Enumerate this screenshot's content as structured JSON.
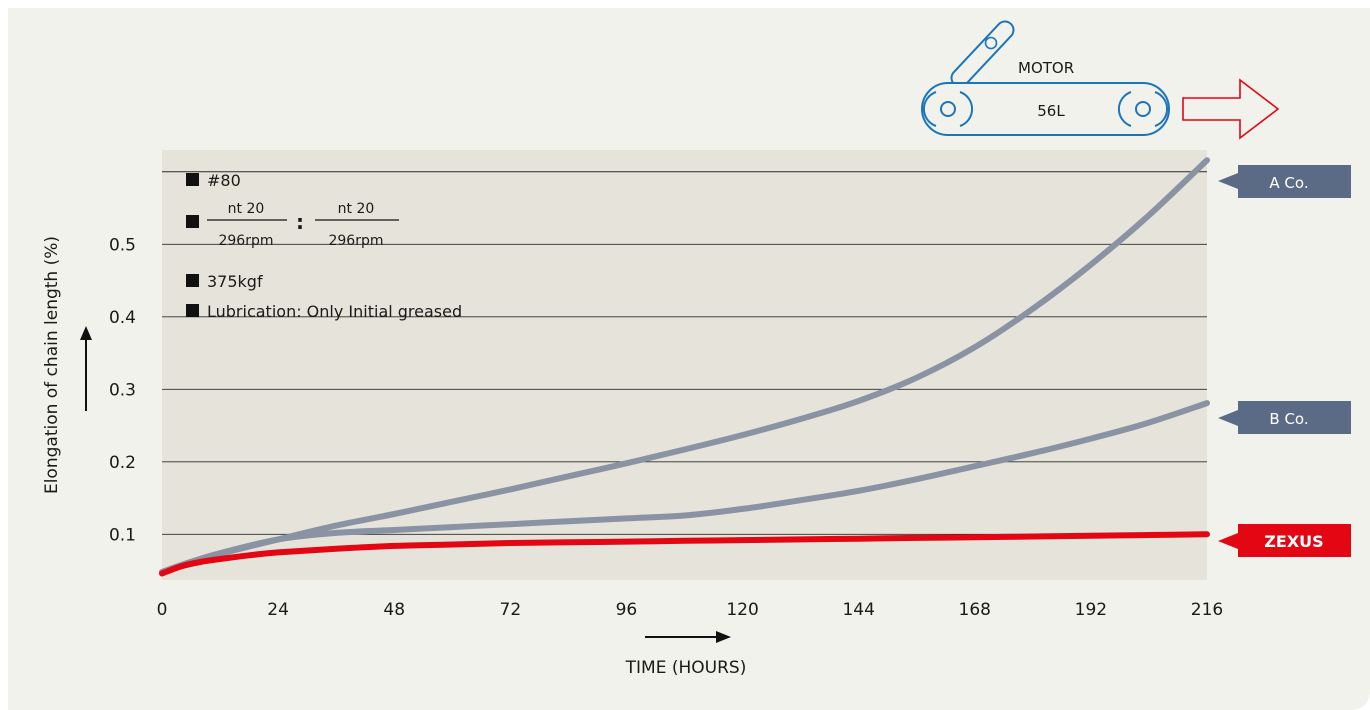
{
  "chart_data": {
    "type": "line",
    "ylabel": "Elongation of chain length (%)",
    "xlabel": "TIME (HOURS)",
    "x_ticks": [
      0,
      24,
      48,
      72,
      96,
      120,
      144,
      168,
      192,
      216
    ],
    "y_ticks": [
      0.1,
      0.2,
      0.3,
      0.4,
      0.5
    ],
    "xlim": [
      0,
      216
    ],
    "ylim": [
      0.037,
      0.63
    ],
    "grid": true,
    "series": [
      {
        "name": "A Co.",
        "color": "#8993a3",
        "x": [
          0,
          6,
          12,
          24,
          36,
          48,
          60,
          72,
          84,
          96,
          108,
          120,
          132,
          144,
          156,
          168,
          180,
          192,
          204,
          216
        ],
        "y": [
          0.048,
          0.062,
          0.073,
          0.093,
          0.112,
          0.128,
          0.145,
          0.162,
          0.18,
          0.198,
          0.217,
          0.237,
          0.259,
          0.284,
          0.316,
          0.358,
          0.411,
          0.472,
          0.54,
          0.616
        ]
      },
      {
        "name": "B Co.",
        "color": "#8993a3",
        "x": [
          0,
          6,
          12,
          24,
          36,
          48,
          60,
          72,
          84,
          96,
          108,
          120,
          132,
          144,
          156,
          168,
          180,
          192,
          204,
          216
        ],
        "y": [
          0.048,
          0.062,
          0.074,
          0.093,
          0.102,
          0.106,
          0.11,
          0.114,
          0.118,
          0.122,
          0.126,
          0.135,
          0.147,
          0.16,
          0.176,
          0.194,
          0.212,
          0.232,
          0.254,
          0.281
        ]
      },
      {
        "name": "ZEXUS",
        "color": "#e30613",
        "x": [
          0,
          4,
          8,
          12,
          18,
          24,
          36,
          48,
          60,
          72,
          84,
          96,
          108,
          120,
          132,
          144,
          156,
          168,
          180,
          192,
          204,
          216
        ],
        "y": [
          0.046,
          0.056,
          0.062,
          0.066,
          0.071,
          0.075,
          0.08,
          0.084,
          0.086,
          0.088,
          0.089,
          0.09,
          0.091,
          0.092,
          0.093,
          0.094,
          0.095,
          0.096,
          0.097,
          0.098,
          0.099,
          0.1
        ]
      }
    ],
    "conditions": {
      "chain": "#80",
      "sprocket_left_teeth": "nt 20",
      "sprocket_left_rpm": "296rpm",
      "ratio_sep": ":",
      "sprocket_right_teeth": "nt 20",
      "sprocket_right_rpm": "296rpm",
      "load": "375kgf",
      "lubrication": "Lubrication: Only Initial greased"
    },
    "diagram": {
      "motor_label": "MOTOR",
      "distance_label": "56L",
      "drive_color": "#1b75bb",
      "arrow_color": "#e30613"
    }
  }
}
